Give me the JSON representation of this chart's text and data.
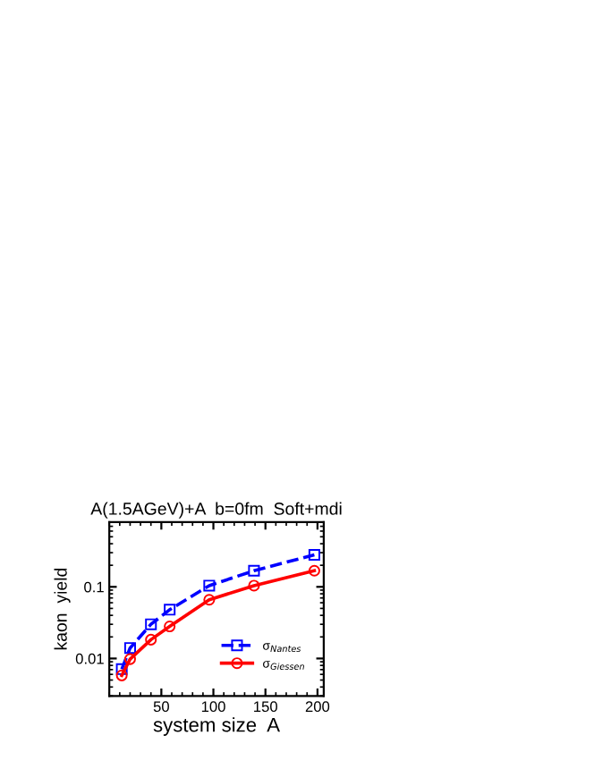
{
  "chart_data": {
    "type": "line",
    "title": "A(1.5AGeV)+A  b=0fm  Soft+mdi",
    "xlabel": "system size  A",
    "ylabel": "kaon  yield",
    "x": [
      12,
      20,
      40,
      58,
      96,
      139,
      197
    ],
    "series": [
      {
        "name": "σ$_{Nantes}$",
        "color": "#0000ff",
        "marker": "square",
        "line_style": "dashed",
        "values": [
          0.0071,
          0.014,
          0.03,
          0.048,
          0.104,
          0.168,
          0.28
        ]
      },
      {
        "name": "σ$_{Giessen}$",
        "color": "#ff0000",
        "marker": "circle",
        "line_style": "solid",
        "values": [
          0.0058,
          0.0098,
          0.0183,
          0.028,
          0.066,
          0.104,
          0.168
        ]
      }
    ],
    "log": "y",
    "xlim": [
      0,
      206
    ],
    "xticks": [
      50,
      100,
      150,
      200
    ],
    "ylim": [
      0.003,
      0.8
    ],
    "yticks": [
      0.01,
      0.1
    ],
    "grid": false,
    "legend": "right"
  }
}
